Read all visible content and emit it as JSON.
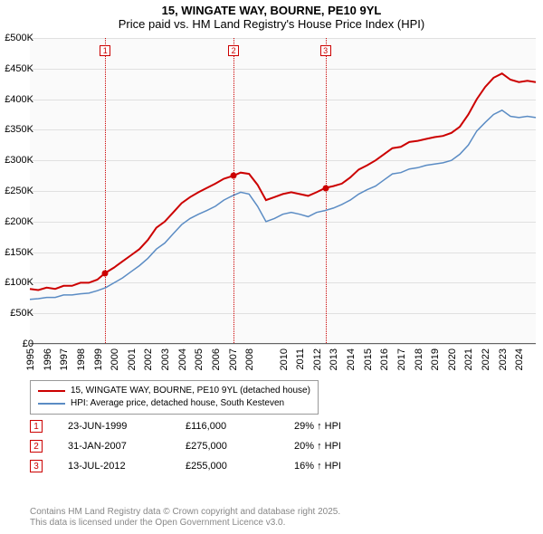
{
  "title": {
    "line1": "15, WINGATE WAY, BOURNE, PE10 9YL",
    "line2": "Price paid vs. HM Land Registry's House Price Index (HPI)",
    "fontsize": 13
  },
  "chart": {
    "type": "line",
    "background": "#fafafa",
    "grid_color": "#e0e0e0",
    "ylim": [
      0,
      500
    ],
    "ytick_step": 50,
    "y_labels": [
      "£0",
      "£50K",
      "£100K",
      "£150K",
      "£200K",
      "£250K",
      "£300K",
      "£350K",
      "£400K",
      "£450K",
      "£500K"
    ],
    "xlim": [
      1995,
      2025
    ],
    "x_labels": [
      "1995",
      "1996",
      "1997",
      "1998",
      "1999",
      "2000",
      "2001",
      "2002",
      "2003",
      "2004",
      "2005",
      "2006",
      "2007",
      "2008",
      "2010",
      "2011",
      "2012",
      "2013",
      "2014",
      "2015",
      "2016",
      "2017",
      "2018",
      "2019",
      "2020",
      "2021",
      "2022",
      "2023",
      "2024"
    ],
    "x_positions": [
      1995,
      1996,
      1997,
      1998,
      1999,
      2000,
      2001,
      2002,
      2003,
      2004,
      2005,
      2006,
      2007,
      2008,
      2010,
      2011,
      2012,
      2013,
      2014,
      2015,
      2016,
      2017,
      2018,
      2019,
      2020,
      2021,
      2022,
      2023,
      2024
    ],
    "series": [
      {
        "name": "15, WINGATE WAY, BOURNE, PE10 9YL (detached house)",
        "color": "#cc0000",
        "width": 2,
        "data": [
          [
            1995,
            90
          ],
          [
            1995.5,
            88
          ],
          [
            1996,
            92
          ],
          [
            1996.5,
            90
          ],
          [
            1997,
            95
          ],
          [
            1997.5,
            95
          ],
          [
            1998,
            100
          ],
          [
            1998.5,
            100
          ],
          [
            1999,
            105
          ],
          [
            1999.47,
            116
          ],
          [
            2000,
            125
          ],
          [
            2000.5,
            135
          ],
          [
            2001,
            145
          ],
          [
            2001.5,
            155
          ],
          [
            2002,
            170
          ],
          [
            2002.5,
            190
          ],
          [
            2003,
            200
          ],
          [
            2003.5,
            215
          ],
          [
            2004,
            230
          ],
          [
            2004.5,
            240
          ],
          [
            2005,
            248
          ],
          [
            2005.5,
            255
          ],
          [
            2006,
            262
          ],
          [
            2006.5,
            270
          ],
          [
            2007.08,
            275
          ],
          [
            2007.5,
            280
          ],
          [
            2008,
            278
          ],
          [
            2008.5,
            260
          ],
          [
            2009,
            235
          ],
          [
            2009.5,
            240
          ],
          [
            2010,
            245
          ],
          [
            2010.5,
            248
          ],
          [
            2011,
            245
          ],
          [
            2011.5,
            242
          ],
          [
            2012,
            248
          ],
          [
            2012.53,
            255
          ],
          [
            2013,
            258
          ],
          [
            2013.5,
            262
          ],
          [
            2014,
            272
          ],
          [
            2014.5,
            285
          ],
          [
            2015,
            292
          ],
          [
            2015.5,
            300
          ],
          [
            2016,
            310
          ],
          [
            2016.5,
            320
          ],
          [
            2017,
            322
          ],
          [
            2017.5,
            330
          ],
          [
            2018,
            332
          ],
          [
            2018.5,
            335
          ],
          [
            2019,
            338
          ],
          [
            2019.5,
            340
          ],
          [
            2020,
            345
          ],
          [
            2020.5,
            355
          ],
          [
            2021,
            375
          ],
          [
            2021.5,
            400
          ],
          [
            2022,
            420
          ],
          [
            2022.5,
            435
          ],
          [
            2023,
            442
          ],
          [
            2023.5,
            432
          ],
          [
            2024,
            428
          ],
          [
            2024.5,
            430
          ],
          [
            2025,
            428
          ]
        ]
      },
      {
        "name": "HPI: Average price, detached house, South Kesteven",
        "color": "#5b8cc4",
        "width": 1.5,
        "data": [
          [
            1995,
            73
          ],
          [
            1995.5,
            74
          ],
          [
            1996,
            76
          ],
          [
            1996.5,
            76
          ],
          [
            1997,
            80
          ],
          [
            1997.5,
            80
          ],
          [
            1998,
            82
          ],
          [
            1998.5,
            83
          ],
          [
            1999,
            87
          ],
          [
            1999.5,
            92
          ],
          [
            2000,
            100
          ],
          [
            2000.5,
            108
          ],
          [
            2001,
            118
          ],
          [
            2001.5,
            128
          ],
          [
            2002,
            140
          ],
          [
            2002.5,
            155
          ],
          [
            2003,
            165
          ],
          [
            2003.5,
            180
          ],
          [
            2004,
            195
          ],
          [
            2004.5,
            205
          ],
          [
            2005,
            212
          ],
          [
            2005.5,
            218
          ],
          [
            2006,
            225
          ],
          [
            2006.5,
            235
          ],
          [
            2007,
            242
          ],
          [
            2007.5,
            248
          ],
          [
            2008,
            245
          ],
          [
            2008.5,
            225
          ],
          [
            2009,
            200
          ],
          [
            2009.5,
            205
          ],
          [
            2010,
            212
          ],
          [
            2010.5,
            215
          ],
          [
            2011,
            212
          ],
          [
            2011.5,
            208
          ],
          [
            2012,
            215
          ],
          [
            2012.5,
            218
          ],
          [
            2013,
            222
          ],
          [
            2013.5,
            228
          ],
          [
            2014,
            235
          ],
          [
            2014.5,
            245
          ],
          [
            2015,
            252
          ],
          [
            2015.5,
            258
          ],
          [
            2016,
            268
          ],
          [
            2016.5,
            278
          ],
          [
            2017,
            280
          ],
          [
            2017.5,
            286
          ],
          [
            2018,
            288
          ],
          [
            2018.5,
            292
          ],
          [
            2019,
            294
          ],
          [
            2019.5,
            296
          ],
          [
            2020,
            300
          ],
          [
            2020.5,
            310
          ],
          [
            2021,
            325
          ],
          [
            2021.5,
            348
          ],
          [
            2022,
            362
          ],
          [
            2022.5,
            375
          ],
          [
            2023,
            382
          ],
          [
            2023.5,
            372
          ],
          [
            2024,
            370
          ],
          [
            2024.5,
            372
          ],
          [
            2025,
            370
          ]
        ]
      }
    ],
    "events": [
      {
        "num": "1",
        "year": 1999.47,
        "price": 116,
        "date": "23-JUN-1999",
        "price_label": "£116,000",
        "hpi": "29% ↑ HPI"
      },
      {
        "num": "2",
        "year": 2007.08,
        "price": 275,
        "date": "31-JAN-2007",
        "price_label": "£275,000",
        "hpi": "20% ↑ HPI"
      },
      {
        "num": "3",
        "year": 2012.53,
        "price": 255,
        "date": "13-JUL-2012",
        "price_label": "£255,000",
        "hpi": "16% ↑ HPI"
      }
    ],
    "event_marker_color": "#cc0000",
    "dot_color": "#cc0000"
  },
  "legend": {
    "items": [
      {
        "color": "#cc0000",
        "label": "15, WINGATE WAY, BOURNE, PE10 9YL (detached house)"
      },
      {
        "color": "#5b8cc4",
        "label": "HPI: Average price, detached house, South Kesteven"
      }
    ]
  },
  "footer": {
    "line1": "Contains HM Land Registry data © Crown copyright and database right 2025.",
    "line2": "This data is licensed under the Open Government Licence v3.0."
  }
}
